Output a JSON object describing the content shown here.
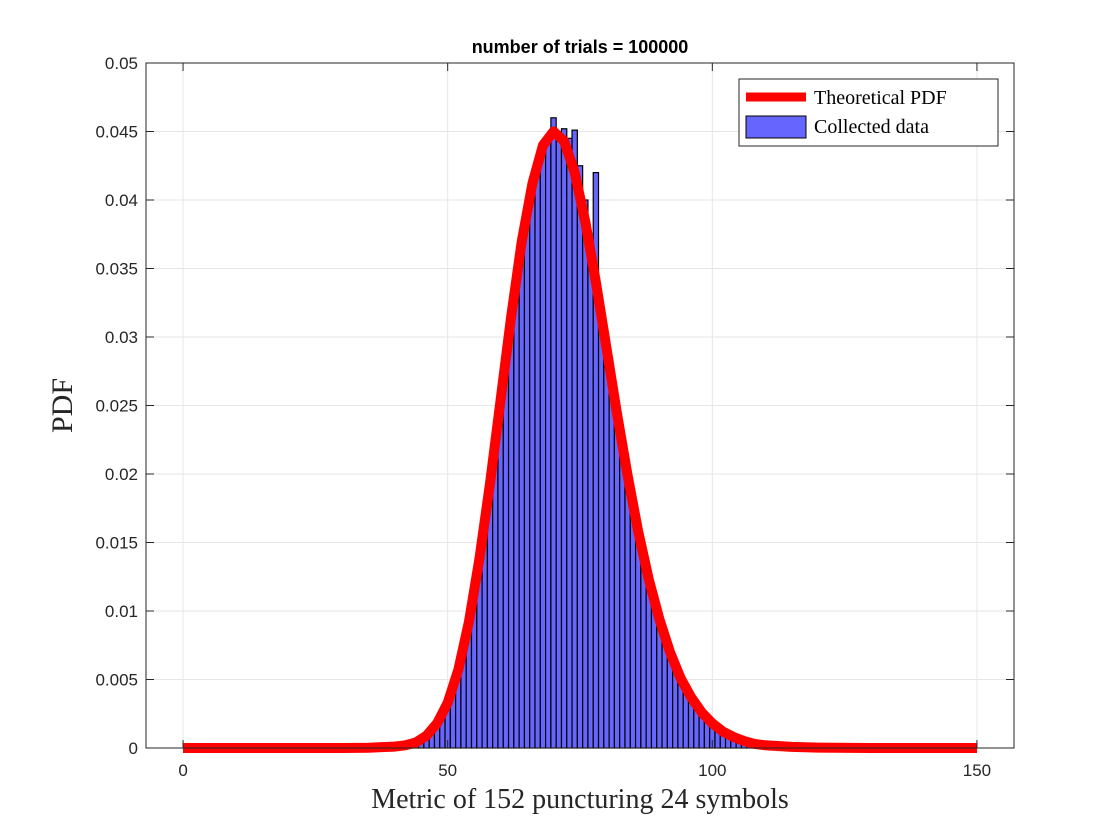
{
  "chart_data": {
    "type": "bar",
    "title": "number of trials = 100000",
    "xlabel": "Metric of 152 puncturing 24 symbols",
    "ylabel": "PDF",
    "xlim": [
      -7,
      157
    ],
    "ylim": [
      0,
      0.05
    ],
    "xticks": [
      0,
      50,
      100,
      150
    ],
    "xtick_labels": [
      "0",
      "50",
      "100",
      "150"
    ],
    "yticks": [
      0,
      0.005,
      0.01,
      0.015,
      0.02,
      0.025,
      0.03,
      0.035,
      0.04,
      0.045,
      0.05
    ],
    "ytick_labels": [
      "0",
      "0.005",
      "0.01",
      "0.015",
      "0.02",
      "0.025",
      "0.03",
      "0.035",
      "0.04",
      "0.045",
      "0.05"
    ],
    "grid": true,
    "legend_position": "top-right",
    "colors": {
      "theoretical": "#ff0000",
      "collected_fill": "#6666ff",
      "collected_edge": "#000000",
      "axes": "#262626",
      "grid": "#e6e6e6"
    },
    "series": [
      {
        "name": "Theoretical PDF",
        "kind": "line",
        "x": [
          0,
          10,
          20,
          30,
          35,
          40,
          42,
          44,
          46,
          48,
          50,
          52,
          54,
          56,
          58,
          60,
          62,
          64,
          66,
          68,
          70,
          72,
          74,
          76,
          78,
          80,
          82,
          84,
          86,
          88,
          90,
          92,
          94,
          96,
          98,
          100,
          102,
          104,
          106,
          108,
          110,
          115,
          120,
          130,
          140,
          150
        ],
        "y": [
          0,
          0,
          0,
          0,
          2e-05,
          0.0001,
          0.0002,
          0.0004,
          0.0009,
          0.0018,
          0.0033,
          0.0057,
          0.0092,
          0.0138,
          0.0193,
          0.0254,
          0.0315,
          0.037,
          0.0412,
          0.044,
          0.045,
          0.0443,
          0.042,
          0.0384,
          0.034,
          0.0292,
          0.0244,
          0.0199,
          0.0158,
          0.0123,
          0.0094,
          0.007,
          0.0051,
          0.0037,
          0.0026,
          0.0018,
          0.0012,
          0.0008,
          0.0005,
          0.0003,
          0.0002,
          8e-05,
          3e-05,
          0,
          0,
          0
        ]
      },
      {
        "name": "Collected data",
        "kind": "histogram",
        "x": [
          40,
          41,
          42,
          43,
          44,
          45,
          46,
          47,
          48,
          49,
          50,
          51,
          52,
          53,
          54,
          55,
          56,
          57,
          58,
          59,
          60,
          61,
          62,
          63,
          64,
          65,
          66,
          67,
          68,
          69,
          70,
          71,
          72,
          73,
          74,
          75,
          76,
          77,
          78,
          79,
          80,
          81,
          82,
          83,
          84,
          85,
          86,
          87,
          88,
          89,
          90,
          91,
          92,
          93,
          94,
          95,
          96,
          97,
          98,
          99,
          100,
          101,
          102,
          103,
          104,
          105,
          106,
          107,
          108,
          109,
          110
        ],
        "y": [
          0.0001,
          0.0001,
          0.0002,
          0.0003,
          0.0004,
          0.0006,
          0.0009,
          0.0013,
          0.0018,
          0.0025,
          0.0033,
          0.0044,
          0.0057,
          0.0073,
          0.0092,
          0.0114,
          0.0138,
          0.0165,
          0.0193,
          0.0224,
          0.0254,
          0.0285,
          0.0316,
          0.0343,
          0.0368,
          0.0392,
          0.0413,
          0.0427,
          0.044,
          0.0446,
          0.046,
          0.045,
          0.0452,
          0.0445,
          0.0451,
          0.0425,
          0.04,
          0.037,
          0.042,
          0.0318,
          0.0295,
          0.0267,
          0.0243,
          0.022,
          0.02,
          0.0178,
          0.0159,
          0.014,
          0.0123,
          0.0108,
          0.0094,
          0.0081,
          0.007,
          0.006,
          0.0051,
          0.0044,
          0.0037,
          0.0031,
          0.0026,
          0.0022,
          0.0018,
          0.0015,
          0.0012,
          0.001,
          0.0008,
          0.0006,
          0.0005,
          0.0004,
          0.0003,
          0.0002,
          0.0002
        ]
      }
    ]
  }
}
